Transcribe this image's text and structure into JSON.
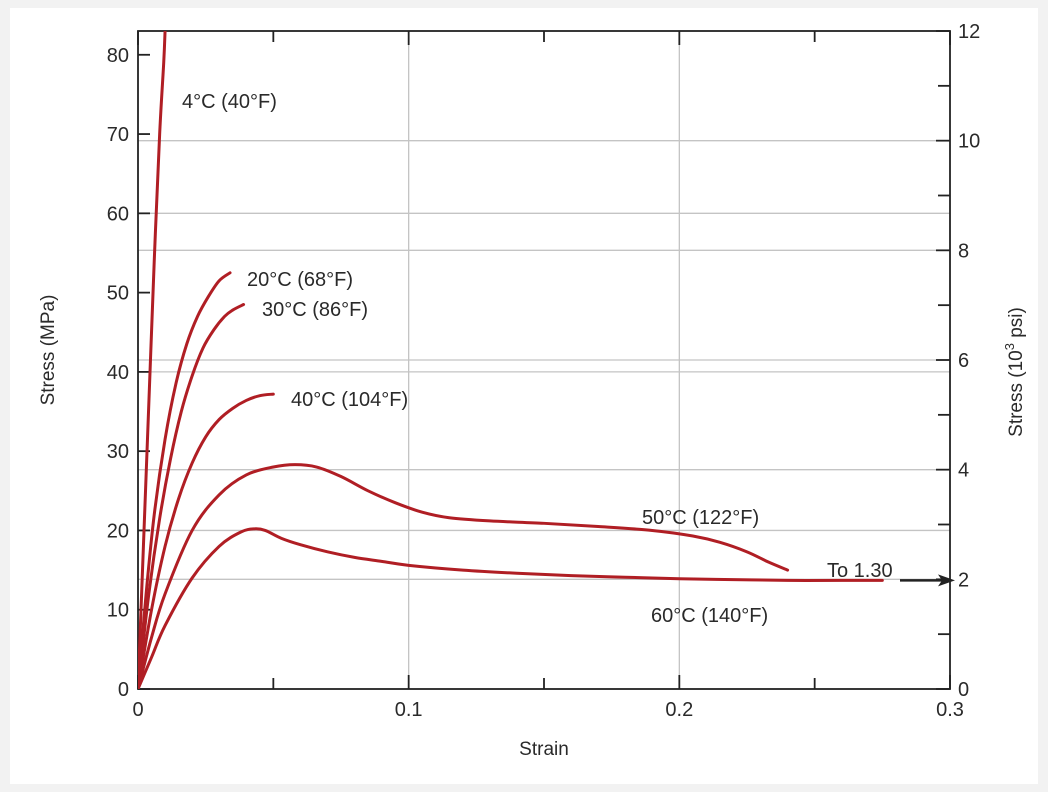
{
  "chart_data": {
    "type": "line",
    "title": "",
    "xlabel": "Strain",
    "ylabel": "Stress (MPa)",
    "y2label_prefix": "Stress (10",
    "y2label_exp": "3",
    "y2label_suffix": " psi)",
    "xlim": [
      0,
      0.3
    ],
    "ylim": [
      0,
      83
    ],
    "y2lim": [
      0,
      12
    ],
    "x_ticks": [
      "0",
      "0.1",
      "0.2",
      "0.3"
    ],
    "y_ticks": [
      "0",
      "10",
      "20",
      "30",
      "40",
      "50",
      "60",
      "70",
      "80"
    ],
    "y2_ticks": [
      "0",
      "2",
      "4",
      "6",
      "8",
      "10",
      "12"
    ],
    "grid": true,
    "line_color": "#b01e24",
    "series": [
      {
        "name": "4°C (40°F)",
        "points": [
          [
            0,
            0
          ],
          [
            0.002,
            18
          ],
          [
            0.004,
            36
          ],
          [
            0.006,
            54
          ],
          [
            0.008,
            70
          ],
          [
            0.0095,
            79
          ],
          [
            0.01,
            83
          ]
        ]
      },
      {
        "name": "20°C (68°F)",
        "points": [
          [
            0,
            0
          ],
          [
            0.003,
            12
          ],
          [
            0.006,
            22
          ],
          [
            0.01,
            31.5
          ],
          [
            0.014,
            38.5
          ],
          [
            0.018,
            43.5
          ],
          [
            0.022,
            47
          ],
          [
            0.026,
            49.5
          ],
          [
            0.03,
            51.5
          ],
          [
            0.034,
            52.5
          ]
        ]
      },
      {
        "name": "30°C (86°F)",
        "points": [
          [
            0,
            0
          ],
          [
            0.004,
            12
          ],
          [
            0.008,
            21.5
          ],
          [
            0.012,
            29
          ],
          [
            0.016,
            35
          ],
          [
            0.02,
            39.5
          ],
          [
            0.024,
            43
          ],
          [
            0.028,
            45.3
          ],
          [
            0.032,
            47
          ],
          [
            0.035,
            47.8
          ],
          [
            0.039,
            48.5
          ]
        ]
      },
      {
        "name": "40°C (104°F)",
        "points": [
          [
            0,
            0
          ],
          [
            0.005,
            10
          ],
          [
            0.01,
            18
          ],
          [
            0.015,
            24
          ],
          [
            0.02,
            28.5
          ],
          [
            0.025,
            31.8
          ],
          [
            0.03,
            34
          ],
          [
            0.035,
            35.4
          ],
          [
            0.04,
            36.4
          ],
          [
            0.045,
            37
          ],
          [
            0.05,
            37.2
          ]
        ]
      },
      {
        "name": "50°C (122°F)",
        "points": [
          [
            0,
            0
          ],
          [
            0.005,
            6.5
          ],
          [
            0.01,
            12
          ],
          [
            0.02,
            20
          ],
          [
            0.03,
            24.5
          ],
          [
            0.04,
            27
          ],
          [
            0.05,
            28
          ],
          [
            0.058,
            28.3
          ],
          [
            0.066,
            28
          ],
          [
            0.075,
            26.8
          ],
          [
            0.085,
            25
          ],
          [
            0.095,
            23.5
          ],
          [
            0.105,
            22.3
          ],
          [
            0.115,
            21.6
          ],
          [
            0.13,
            21.2
          ],
          [
            0.15,
            20.9
          ],
          [
            0.17,
            20.5
          ],
          [
            0.19,
            20
          ],
          [
            0.205,
            19.3
          ],
          [
            0.215,
            18.5
          ],
          [
            0.225,
            17.3
          ],
          [
            0.233,
            16
          ],
          [
            0.24,
            15
          ]
        ]
      },
      {
        "name": "60°C (140°F)",
        "points": [
          [
            0,
            0
          ],
          [
            0.005,
            4
          ],
          [
            0.01,
            8
          ],
          [
            0.02,
            14
          ],
          [
            0.03,
            18
          ],
          [
            0.038,
            19.8
          ],
          [
            0.043,
            20.2
          ],
          [
            0.047,
            20
          ],
          [
            0.053,
            19
          ],
          [
            0.06,
            18.2
          ],
          [
            0.07,
            17.3
          ],
          [
            0.08,
            16.6
          ],
          [
            0.09,
            16.1
          ],
          [
            0.1,
            15.6
          ],
          [
            0.12,
            15
          ],
          [
            0.14,
            14.6
          ],
          [
            0.16,
            14.3
          ],
          [
            0.18,
            14.1
          ],
          [
            0.2,
            13.9
          ],
          [
            0.22,
            13.8
          ],
          [
            0.24,
            13.7
          ],
          [
            0.26,
            13.7
          ],
          [
            0.275,
            13.7
          ]
        ]
      }
    ],
    "annotation": "To 1.30"
  }
}
